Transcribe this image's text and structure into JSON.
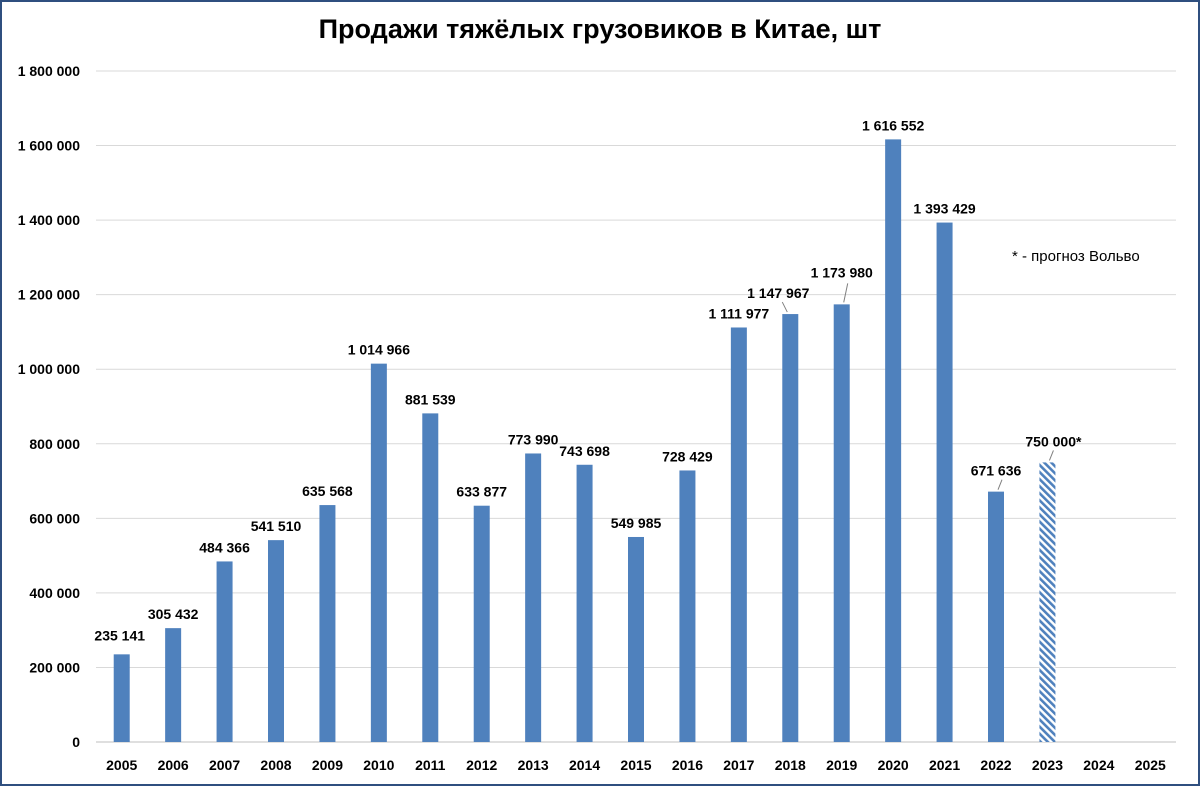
{
  "chart_data": {
    "type": "bar",
    "title": "Продажи тяжёлых грузовиков в Китае, шт",
    "categories": [
      "2005",
      "2006",
      "2007",
      "2008",
      "2009",
      "2010",
      "2011",
      "2012",
      "2013",
      "2014",
      "2015",
      "2016",
      "2017",
      "2018",
      "2019",
      "2020",
      "2021",
      "2022",
      "2023",
      "2024",
      "2025"
    ],
    "values": [
      235141,
      305432,
      484366,
      541510,
      635568,
      1014966,
      881539,
      633877,
      773990,
      743698,
      549985,
      728429,
      1111977,
      1147967,
      1173980,
      1616552,
      1393429,
      671636,
      750000,
      null,
      null
    ],
    "data_labels": [
      "235 141",
      "305 432",
      "484 366",
      "541 510",
      "635 568",
      "1 014 966",
      "881 539",
      "633 877",
      "773 990",
      "743 698",
      "549 985",
      "728 429",
      "1 111 977",
      "1 147 967",
      "1 173 980",
      "1 616 552",
      "1 393 429",
      "671 636",
      "750 000*",
      "",
      ""
    ],
    "forecast": [
      false,
      false,
      false,
      false,
      false,
      false,
      false,
      false,
      false,
      false,
      false,
      false,
      false,
      false,
      false,
      false,
      false,
      false,
      true,
      false,
      false
    ],
    "ylim": [
      0,
      1800000
    ],
    "yticks": [
      0,
      200000,
      400000,
      600000,
      800000,
      1000000,
      1200000,
      1400000,
      1600000,
      1800000
    ],
    "ytick_labels": [
      "0",
      "200 000",
      "400 000",
      "600 000",
      "800 000",
      "1 000 000",
      "1 200 000",
      "1 400 000",
      "1 600 000",
      "1 800 000"
    ],
    "grid": true,
    "xlabel": "",
    "ylabel": "",
    "annotation": "* - прогноз Вольво",
    "bar_color": "#4f81bd",
    "grid_color": "#d9d9d9"
  }
}
